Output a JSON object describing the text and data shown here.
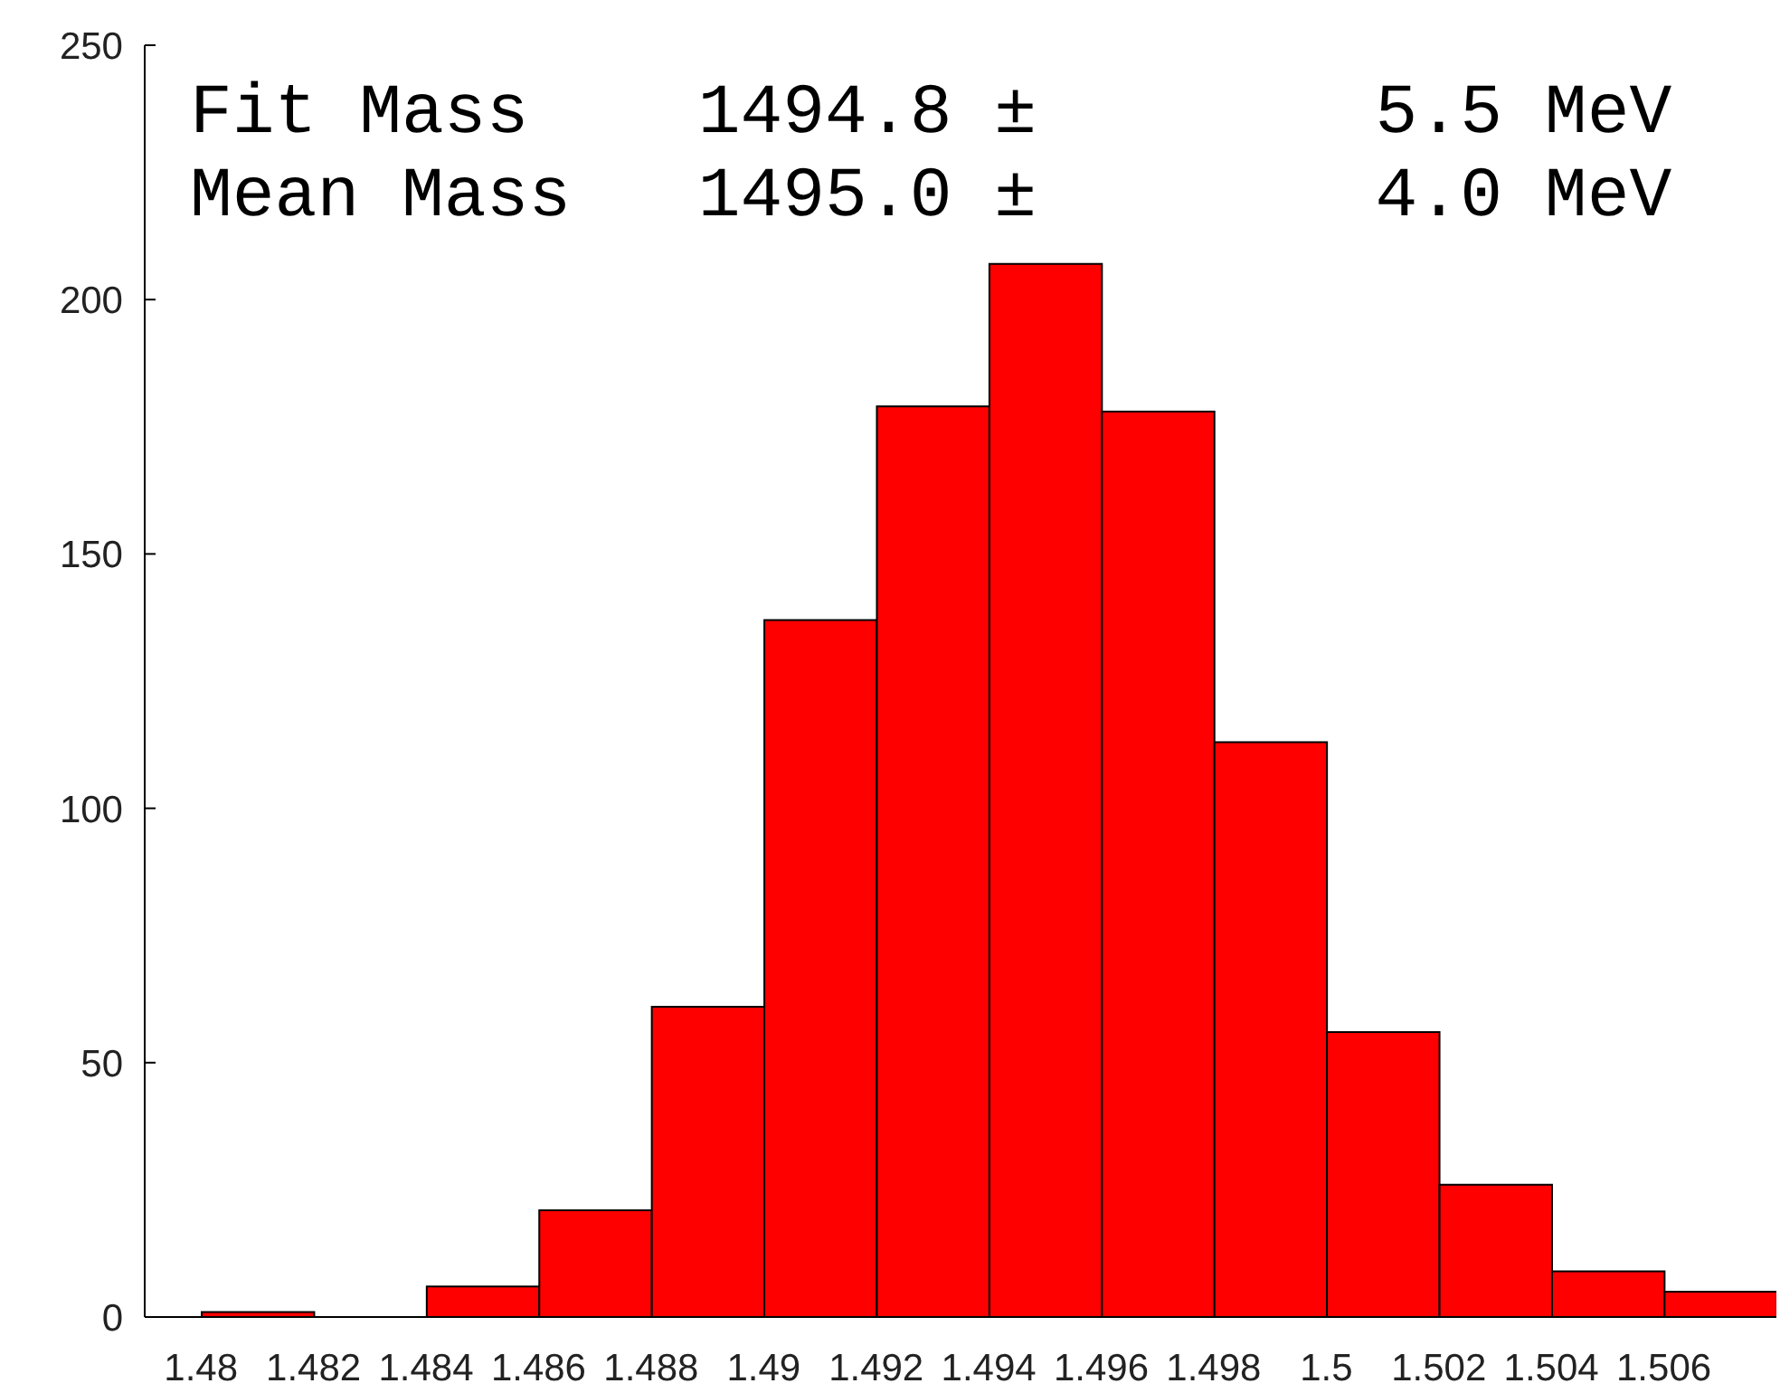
{
  "chart_data": {
    "type": "histogram",
    "bins": [
      1.48,
      1.482,
      1.484,
      1.486,
      1.488,
      1.49,
      1.492,
      1.494,
      1.496,
      1.498,
      1.5,
      1.502,
      1.504,
      1.506,
      1.508
    ],
    "values": [
      1,
      0,
      6,
      21,
      61,
      137,
      179,
      207,
      178,
      113,
      56,
      26,
      9,
      5
    ],
    "color": "#ff0000",
    "xlim": [
      1.479,
      1.508
    ],
    "xticks": [
      1.48,
      1.482,
      1.484,
      1.486,
      1.488,
      1.49,
      1.492,
      1.494,
      1.496,
      1.498,
      1.5,
      1.502,
      1.504,
      1.506
    ],
    "ylim": [
      0,
      250
    ],
    "yticks": [
      0,
      50,
      100,
      150,
      200,
      250
    ],
    "annotations": [
      "Fit Mass    1494.8 ±        5.5 MeV",
      "Mean Mass   1495.0 ±        4.0 MeV"
    ]
  }
}
